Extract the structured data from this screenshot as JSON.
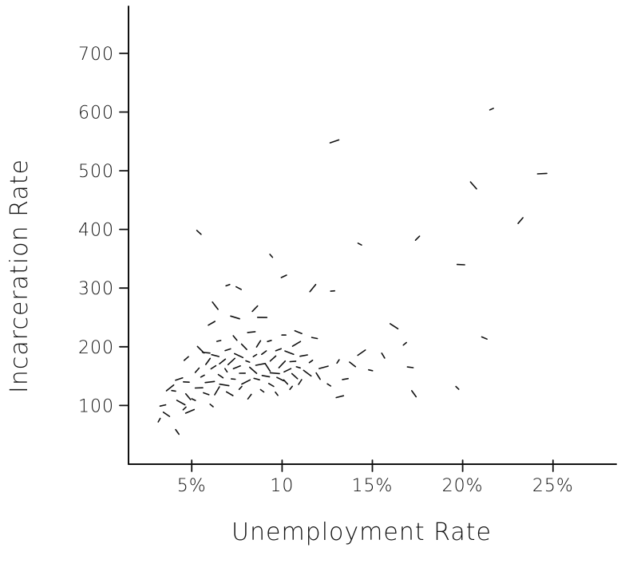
{
  "chart_data": {
    "type": "scatter",
    "title": "",
    "xlabel": "Unemployment Rate",
    "ylabel": "Incarceration Rate",
    "xlim": [
      1.5,
      28.5
    ],
    "ylim": [
      0,
      780
    ],
    "x_ticks": [
      {
        "value": 5,
        "label": "5%"
      },
      {
        "value": 10,
        "label": "10"
      },
      {
        "value": 15,
        "label": "15%"
      },
      {
        "value": 20,
        "label": "20%"
      },
      {
        "value": 25,
        "label": "25%"
      }
    ],
    "y_ticks": [
      {
        "value": 100,
        "label": "100"
      },
      {
        "value": 200,
        "label": "200"
      },
      {
        "value": 300,
        "label": "300"
      },
      {
        "value": 400,
        "label": "400"
      },
      {
        "value": 500,
        "label": "500"
      },
      {
        "value": 600,
        "label": "600"
      },
      {
        "value": 700,
        "label": "700"
      }
    ],
    "grid": false,
    "series": [
      {
        "values": [
          [
            3.2,
            75
          ],
          [
            3.4,
            100
          ],
          [
            3.6,
            85
          ],
          [
            3.8,
            130
          ],
          [
            4.0,
            125
          ],
          [
            4.2,
            55
          ],
          [
            4.3,
            145
          ],
          [
            4.4,
            105
          ],
          [
            4.6,
            95
          ],
          [
            4.7,
            140
          ],
          [
            4.8,
            115
          ],
          [
            4.9,
            90
          ],
          [
            5.1,
            110
          ],
          [
            5.3,
            160
          ],
          [
            5.4,
            130
          ],
          [
            5.5,
            195
          ],
          [
            5.6,
            150
          ],
          [
            5.8,
            120
          ],
          [
            5.9,
            175
          ],
          [
            6.0,
            140
          ],
          [
            6.1,
            100
          ],
          [
            6.2,
            165
          ],
          [
            6.3,
            185
          ],
          [
            6.4,
            125
          ],
          [
            6.5,
            210
          ],
          [
            6.6,
            150
          ],
          [
            6.7,
            175
          ],
          [
            6.8,
            135
          ],
          [
            6.9,
            160
          ],
          [
            7.0,
            195
          ],
          [
            7.1,
            120
          ],
          [
            7.2,
            175
          ],
          [
            7.3,
            145
          ],
          [
            7.4,
            215
          ],
          [
            7.5,
            165
          ],
          [
            7.6,
            185
          ],
          [
            7.7,
            130
          ],
          [
            7.8,
            155
          ],
          [
            7.9,
            200
          ],
          [
            8.0,
            140
          ],
          [
            8.1,
            175
          ],
          [
            8.2,
            115
          ],
          [
            8.3,
            225
          ],
          [
            8.4,
            160
          ],
          [
            8.5,
            185
          ],
          [
            8.6,
            145
          ],
          [
            8.7,
            205
          ],
          [
            8.8,
            170
          ],
          [
            8.9,
            125
          ],
          [
            9.0,
            190
          ],
          [
            9.1,
            150
          ],
          [
            9.2,
            165
          ],
          [
            9.3,
            210
          ],
          [
            9.4,
            135
          ],
          [
            9.5,
            180
          ],
          [
            9.6,
            155
          ],
          [
            9.7,
            120
          ],
          [
            9.8,
            195
          ],
          [
            9.9,
            145
          ],
          [
            10.0,
            170
          ],
          [
            10.1,
            220
          ],
          [
            10.2,
            140
          ],
          [
            10.3,
            160
          ],
          [
            10.4,
            190
          ],
          [
            10.5,
            130
          ],
          [
            10.6,
            175
          ],
          [
            10.7,
            150
          ],
          [
            10.8,
            205
          ],
          [
            10.9,
            165
          ],
          [
            11.0,
            140
          ],
          [
            11.2,
            185
          ],
          [
            11.4,
            155
          ],
          [
            11.6,
            175
          ],
          [
            11.8,
            215
          ],
          [
            12.0,
            150
          ],
          [
            12.3,
            165
          ],
          [
            12.6,
            135
          ],
          [
            4.7,
            180
          ],
          [
            5.8,
            190
          ],
          [
            6.3,
            270
          ],
          [
            7.0,
            305
          ],
          [
            7.6,
            300
          ],
          [
            8.5,
            265
          ],
          [
            8.9,
            250
          ],
          [
            9.4,
            355
          ],
          [
            10.1,
            320
          ],
          [
            10.9,
            225
          ],
          [
            11.7,
            300
          ],
          [
            12.8,
            295
          ],
          [
            5.4,
            395
          ],
          [
            6.1,
            240
          ],
          [
            7.4,
            250
          ],
          [
            13.1,
            175
          ],
          [
            13.5,
            145
          ],
          [
            13.9,
            170
          ],
          [
            14.4,
            190
          ],
          [
            14.9,
            160
          ],
          [
            15.6,
            185
          ],
          [
            13.2,
            115
          ],
          [
            16.2,
            235
          ],
          [
            16.8,
            205
          ],
          [
            17.1,
            165
          ],
          [
            17.3,
            120
          ],
          [
            12.9,
            550
          ],
          [
            14.3,
            375
          ],
          [
            17.5,
            385
          ],
          [
            19.9,
            340
          ],
          [
            20.6,
            475
          ],
          [
            21.6,
            605
          ],
          [
            21.2,
            215
          ],
          [
            23.2,
            415
          ],
          [
            24.4,
            495
          ],
          [
            19.7,
            130
          ]
        ]
      }
    ]
  }
}
